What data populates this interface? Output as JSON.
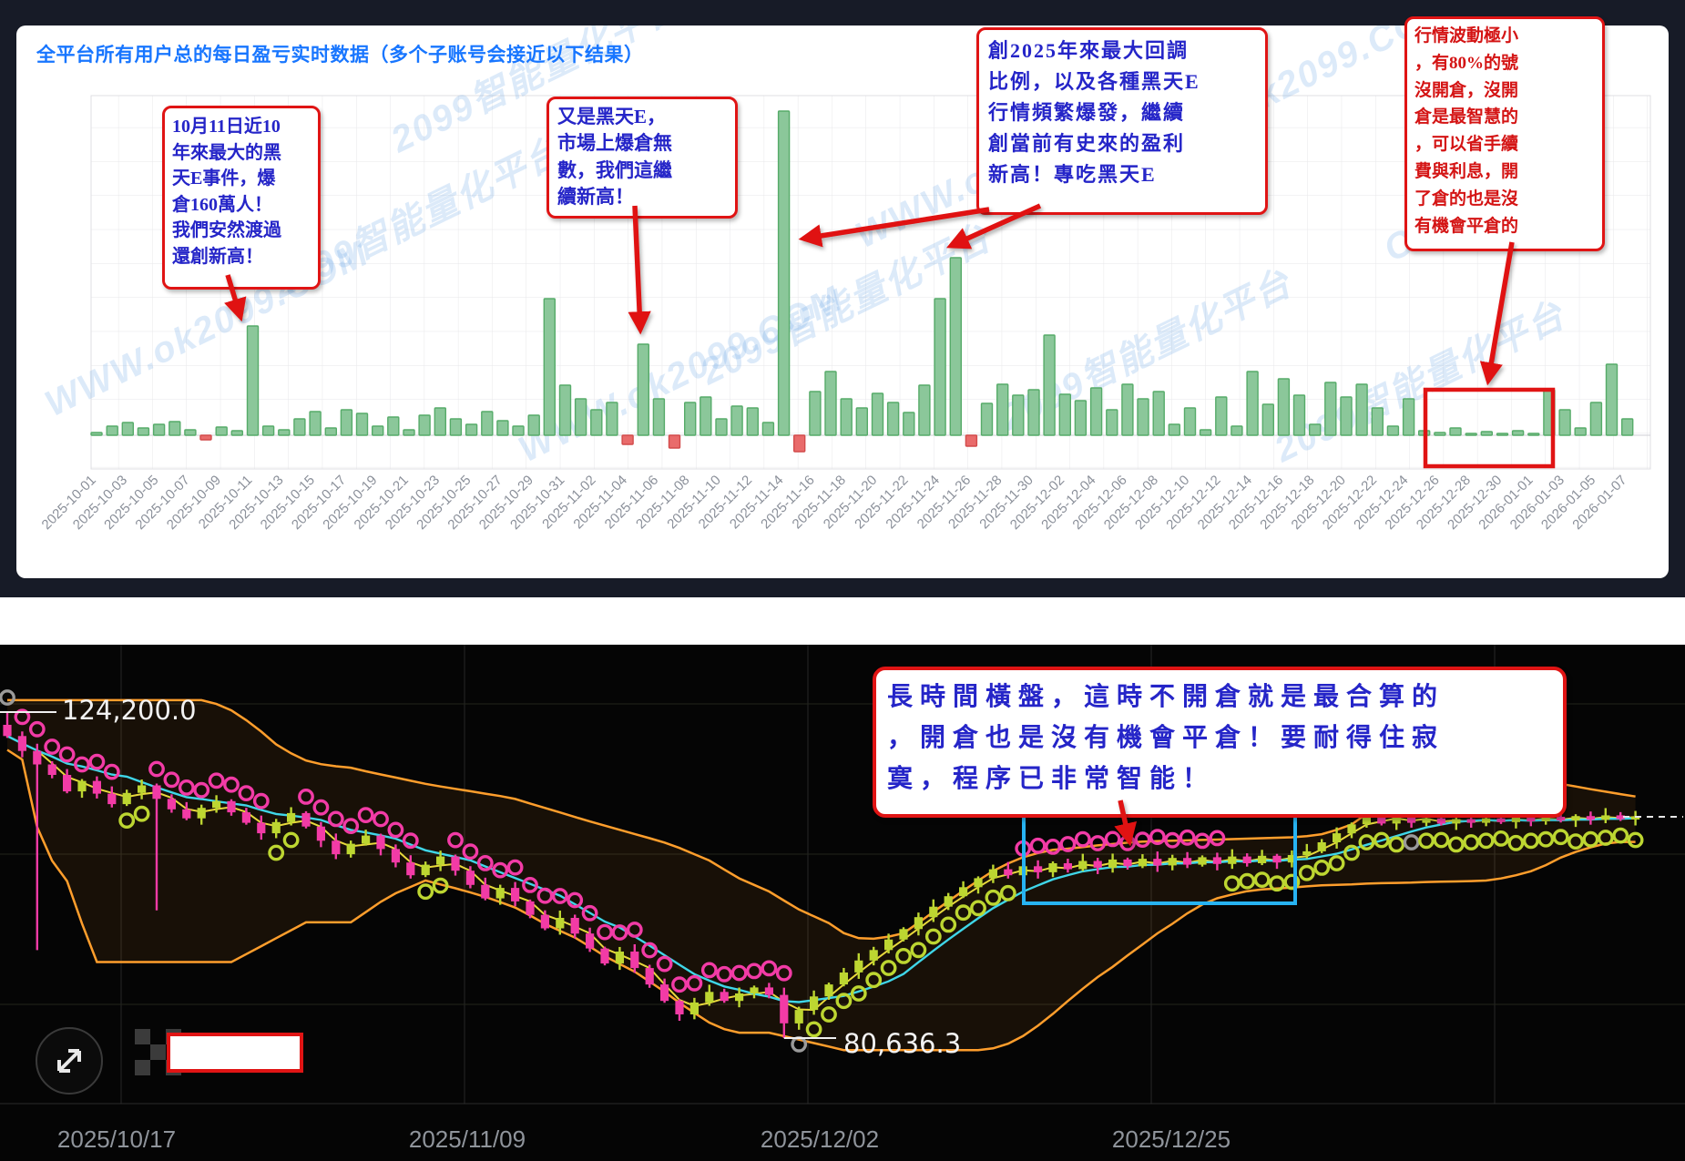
{
  "page": {
    "background": "#171b27"
  },
  "top_panel": {
    "title": "全平台所有用户总的每日盈亏实时数据（多个子账号会接近以下结果）",
    "title_color": "#1876ff",
    "watermark_texts": [
      "WWW.ok2099.COM",
      "2099智能量化平台",
      "OK"
    ],
    "annotations": [
      {
        "id": "oct11-black-swan",
        "text": "10月11日近10\n年來最大的黑\n天E事件，爆\n倉160萬人！\n我們安然渡過\n還創新高！",
        "color": "#2525c8"
      },
      {
        "id": "black-swan-again",
        "text": "又是黑天E，\n市場上爆倉無\n數，我們這繼\n續新高！",
        "color": "#2525c8"
      },
      {
        "id": "max-drawdown-2025",
        "text": "創2025年來最大回調\n比例，以及各種黑天E\n行情頻繁爆發，繼續\n創當前有史來的盈利\n新高！專吃黑天E",
        "color": "#2525c8"
      },
      {
        "id": "no-open-position",
        "text": "行情波動極小\n，有80%的號\n沒開倉，沒開\n倉是最智慧的\n，可以省手續\n費與利息，開\n了倉的也是沒\n有機會平倉的",
        "color": "#d41414"
      }
    ]
  },
  "bottom_panel": {
    "annotation": {
      "id": "sideways-note",
      "text": "長時間橫盤，這時不開倉就是最合算的\n，開倉也是沒有機會平倉！要耐得住寂\n寞，程序已非常智能！",
      "color": "#2525c8"
    },
    "high_label": "124,200.0",
    "low_label": "80,636.3",
    "x_labels": [
      "2025/10/17",
      "2025/11/09",
      "2025/12/02",
      "2025/12/25"
    ]
  },
  "chart_data": [
    {
      "type": "bar",
      "title": "全平台所有用户总的每日盈亏实时数据（多个子账号会接近以下结果）",
      "xlabel": "date",
      "ylabel": "daily profit/loss (relative, no y-axis labels shown)",
      "start_date": "2025-10-01",
      "end_date": "2026-01-07",
      "x_step_days": 1,
      "tick_labels": [
        "2025-10-01",
        "2025-10-03",
        "2025-10-05",
        "2025-10-07",
        "2025-10-09",
        "2025-10-11",
        "2025-10-13",
        "2025-10-15",
        "2025-10-17",
        "2025-10-19",
        "2025-10-21",
        "2025-10-23",
        "2025-10-25",
        "2025-10-27",
        "2025-10-29",
        "2025-10-31",
        "2025-11-02",
        "2025-11-04",
        "2025-11-06",
        "2025-11-08",
        "2025-11-10",
        "2025-11-12",
        "2025-11-14",
        "2025-11-16",
        "2025-11-18",
        "2025-11-20",
        "2025-11-22",
        "2025-11-24",
        "2025-11-26",
        "2025-11-28",
        "2025-11-30",
        "2025-12-02",
        "2025-12-04",
        "2025-12-06",
        "2025-12-08",
        "2025-12-10",
        "2025-12-12",
        "2025-12-14",
        "2025-12-16",
        "2025-12-18",
        "2025-12-20",
        "2025-12-22",
        "2025-12-24",
        "2025-12-26",
        "2025-12-28",
        "2025-12-30",
        "2026-01-01",
        "2026-01-03",
        "2026-01-05",
        "2026-01-07"
      ],
      "values": [
        3,
        10,
        14,
        8,
        12,
        15,
        6,
        -5,
        9,
        5,
        120,
        10,
        6,
        18,
        26,
        8,
        28,
        24,
        10,
        20,
        6,
        22,
        30,
        18,
        12,
        26,
        16,
        10,
        22,
        150,
        55,
        40,
        28,
        36,
        -10,
        100,
        40,
        -14,
        36,
        42,
        18,
        32,
        30,
        14,
        356,
        -18,
        48,
        70,
        40,
        30,
        46,
        36,
        25,
        55,
        150,
        195,
        -12,
        35,
        56,
        44,
        50,
        110,
        45,
        38,
        52,
        28,
        56,
        40,
        48,
        12,
        30,
        6,
        42,
        10,
        70,
        34,
        62,
        44,
        12,
        58,
        42,
        56,
        30,
        10,
        40,
        5,
        3,
        8,
        2,
        4,
        2,
        5,
        2,
        50,
        28,
        8,
        36,
        78,
        18
      ],
      "bar_color_positive": "#8bc79a",
      "bar_color_negative": "#e96b6b",
      "grid": true,
      "highlight_box_range": [
        "2025-12-26",
        "2026-01-01"
      ]
    },
    {
      "type": "candlestick",
      "x_axis_labels": [
        "2025/10/17",
        "2025/11/09",
        "2025/12/02",
        "2025/12/25"
      ],
      "high_marker": {
        "label": "124,200.0",
        "value": 124200.0
      },
      "low_marker": {
        "label": "80,636.3",
        "value": 80636.3
      },
      "closes_k": [
        121.0,
        119.0,
        117.2,
        115.8,
        113.6,
        115.0,
        113.3,
        111.9,
        113.4,
        114.4,
        112.6,
        111.2,
        110.0,
        111.4,
        112.3,
        110.8,
        109.4,
        108.0,
        109.5,
        110.7,
        108.9,
        107.0,
        105.2,
        106.6,
        107.7,
        105.9,
        104.1,
        102.4,
        103.8,
        104.9,
        103.0,
        101.1,
        99.3,
        100.7,
        98.9,
        97.1,
        95.3,
        96.7,
        94.6,
        92.6,
        90.6,
        92.2,
        90.0,
        87.8,
        85.6,
        83.8,
        85.4,
        86.8,
        85.6,
        86.6,
        87.4,
        86.4,
        82.6,
        84.4,
        86.2,
        87.8,
        89.4,
        91.0,
        92.4,
        93.8,
        95.2,
        96.8,
        98.2,
        99.6,
        100.8,
        102.0,
        103.2,
        102.4,
        103.6,
        102.8,
        104.0,
        103.2,
        104.3,
        103.4,
        104.5,
        103.6,
        104.6,
        103.7,
        104.7,
        103.8,
        104.8,
        103.9,
        104.9,
        104.0,
        105.0,
        104.1,
        105.1,
        105.6,
        106.8,
        108.0,
        109.2,
        110.3,
        109.3,
        110.4,
        109.4,
        110.0,
        109.3,
        109.9,
        109.4,
        110.0,
        109.5,
        110.1,
        109.6,
        110.2,
        109.7,
        110.3,
        109.8,
        110.4,
        109.9,
        110.2
      ],
      "wick_low_overrides_k": {
        "2": 92.4,
        "10": 97.7,
        "52": 80.636
      },
      "wick_high_overrides_k": {
        "0": 124.2,
        "91": 113.0
      },
      "sar": "gpppppppllppppppppllppppppppllpppppppppppppppppppppppgllllllllllllllppppppppppppppllllllllllllglllllllllllllll",
      "colors": {
        "up": "#bdd631",
        "down": "#f23ba6",
        "band": "#ff9e2c",
        "mid_ma": "#3fd6e8",
        "fast_ma": "#e8d93c",
        "sar_gray": "#9a9a9a",
        "highlight_box": "#27b3f2"
      },
      "legend": "none",
      "grid": true
    }
  ]
}
